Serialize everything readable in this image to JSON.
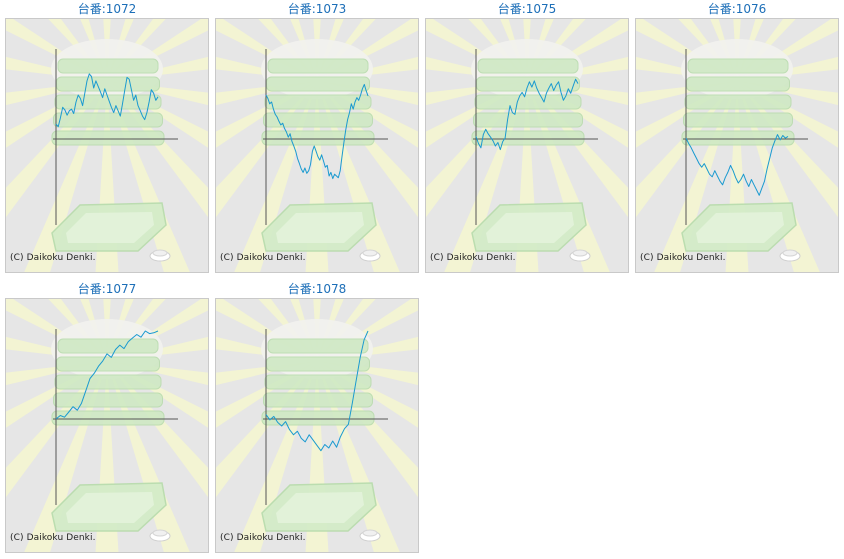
{
  "page": {
    "machines": [
      {
        "title": "台番:1072",
        "copyright": "(C) Daikoku Denki.",
        "line_color": "#1a9ad0",
        "trend": [
          0.17,
          0.14,
          0.24,
          0.36,
          0.33,
          0.27,
          0.32,
          0.34,
          0.29,
          0.42,
          0.5,
          0.46,
          0.38,
          0.52,
          0.66,
          0.74,
          0.71,
          0.58,
          0.66,
          0.6,
          0.54,
          0.47,
          0.57,
          0.5,
          0.43,
          0.36,
          0.3,
          0.38,
          0.32,
          0.26,
          0.4,
          0.55,
          0.7,
          0.68,
          0.56,
          0.44,
          0.5,
          0.38,
          0.32,
          0.26,
          0.22,
          0.3,
          0.42,
          0.56,
          0.52,
          0.44,
          0.48
        ]
      },
      {
        "title": "台番:1073",
        "copyright": "(C) Daikoku Denki.",
        "line_color": "#1a9ad0",
        "trend": [
          0.5,
          0.46,
          0.4,
          0.42,
          0.34,
          0.28,
          0.25,
          0.2,
          0.16,
          0.18,
          0.12,
          0.08,
          0.02,
          0.06,
          -0.03,
          -0.08,
          -0.14,
          -0.22,
          -0.28,
          -0.34,
          -0.38,
          -0.33,
          -0.39,
          -0.36,
          -0.29,
          -0.14,
          -0.08,
          -0.14,
          -0.2,
          -0.24,
          -0.18,
          -0.25,
          -0.32,
          -0.3,
          -0.42,
          -0.38,
          -0.45,
          -0.4,
          -0.42,
          -0.44,
          -0.36,
          -0.2,
          -0.04,
          0.1,
          0.22,
          0.3,
          0.4,
          0.34,
          0.42,
          0.47,
          0.44,
          0.5,
          0.57,
          0.62,
          0.55,
          0.49
        ]
      },
      {
        "title": "台番:1075",
        "copyright": "(C) Daikoku Denki.",
        "line_color": "#1a9ad0",
        "trend": [
          0.03,
          -0.05,
          -0.1,
          0.05,
          0.11,
          0.06,
          0.02,
          -0.02,
          -0.08,
          -0.04,
          -0.12,
          -0.03,
          0.01,
          0.22,
          0.38,
          0.3,
          0.28,
          0.42,
          0.49,
          0.53,
          0.48,
          0.58,
          0.65,
          0.59,
          0.66,
          0.58,
          0.52,
          0.47,
          0.42,
          0.52,
          0.58,
          0.63,
          0.55,
          0.61,
          0.65,
          0.53,
          0.44,
          0.49,
          0.57,
          0.52,
          0.6,
          0.68,
          0.63
        ]
      },
      {
        "title": "台番:1076",
        "copyright": "(C) Daikoku Denki.",
        "line_color": "#1a9ad0",
        "trend": [
          0.01,
          -0.05,
          -0.1,
          -0.16,
          -0.22,
          -0.28,
          -0.32,
          -0.28,
          -0.34,
          -0.4,
          -0.43,
          -0.36,
          -0.42,
          -0.48,
          -0.52,
          -0.44,
          -0.38,
          -0.3,
          -0.36,
          -0.44,
          -0.5,
          -0.46,
          -0.4,
          -0.48,
          -0.54,
          -0.46,
          -0.52,
          -0.58,
          -0.64,
          -0.56,
          -0.48,
          -0.34,
          -0.22,
          -0.1,
          -0.02,
          0.05,
          -0.01,
          0.04,
          0.01,
          0.03
        ]
      },
      {
        "title": "台番:1077",
        "copyright": "(C) Daikoku Denki.",
        "line_color": "#1a9ad0",
        "trend": [
          0.0,
          0.04,
          0.02,
          0.08,
          0.14,
          0.1,
          0.18,
          0.32,
          0.46,
          0.52,
          0.6,
          0.66,
          0.74,
          0.7,
          0.79,
          0.84,
          0.8,
          0.88,
          0.92,
          0.96,
          0.93,
          1.0,
          0.97,
          0.98,
          1.0
        ]
      },
      {
        "title": "台番:1078",
        "copyright": "(C) Daikoku Denki.",
        "line_color": "#1a9ad0",
        "trend": [
          0.05,
          -0.01,
          0.03,
          -0.04,
          -0.08,
          -0.03,
          -0.12,
          -0.18,
          -0.14,
          -0.22,
          -0.26,
          -0.18,
          -0.24,
          -0.3,
          -0.36,
          -0.29,
          -0.33,
          -0.25,
          -0.32,
          -0.2,
          -0.11,
          -0.06,
          0.18,
          0.44,
          0.7,
          0.9,
          1.0
        ]
      }
    ]
  }
}
